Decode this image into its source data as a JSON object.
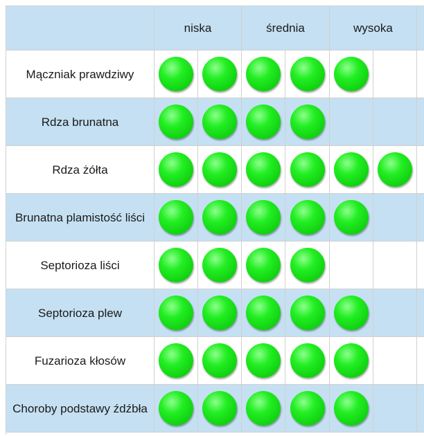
{
  "levels": [
    "niska",
    "średnia",
    "wysoka"
  ],
  "rows": [
    {
      "label": "Mączniak prawdziwy",
      "score": 5
    },
    {
      "label": "Rdza brunatna",
      "score": 4
    },
    {
      "label": "Rdza żółta",
      "score": 6
    },
    {
      "label": "Brunatna plamistość liści",
      "score": 5
    },
    {
      "label": "Septorioza liści",
      "score": 4
    },
    {
      "label": "Septorioza plew",
      "score": 5
    },
    {
      "label": "Fuzarioza kłosów",
      "score": 5
    },
    {
      "label": "Choroby podstawy źdźbła",
      "score": 5
    }
  ],
  "max_score": 6,
  "colors": {
    "header_bg": "#c5e0f2",
    "dot": "#22ee22",
    "grid": "#d0d0d0"
  },
  "icon": "green-circle-icon"
}
